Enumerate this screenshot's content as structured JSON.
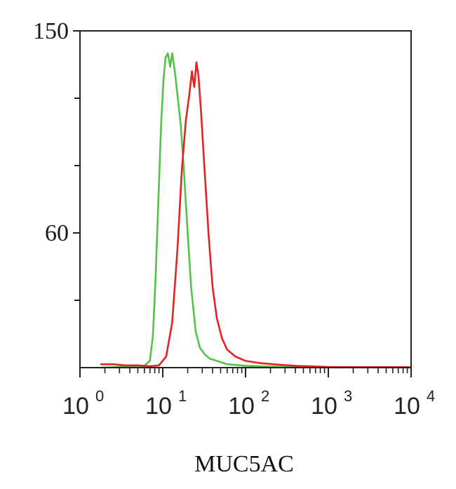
{
  "chart_data": {
    "type": "line",
    "xlabel": "MUC5AC",
    "ylabel": "",
    "xscale": "log",
    "xlim": [
      1,
      10000
    ],
    "ylim": [
      0,
      150
    ],
    "yticks": [
      {
        "value": 150,
        "label": "150"
      },
      {
        "value": 60,
        "label": "60"
      }
    ],
    "xticks": [
      {
        "value": 1,
        "base": "10",
        "exp": "0"
      },
      {
        "value": 10,
        "base": "10",
        "exp": "1"
      },
      {
        "value": 100,
        "base": "10",
        "exp": "2"
      },
      {
        "value": 1000,
        "base": "10",
        "exp": "3"
      },
      {
        "value": 10000,
        "base": "10",
        "exp": "4"
      }
    ],
    "grid": false,
    "legend": "none",
    "series": [
      {
        "color": "#54c24a",
        "points": [
          [
            1.8,
            0
          ],
          [
            4.0,
            0.5
          ],
          [
            6.0,
            0.8
          ],
          [
            7.0,
            3
          ],
          [
            7.6,
            14
          ],
          [
            8.2,
            40
          ],
          [
            9.0,
            82
          ],
          [
            9.6,
            110
          ],
          [
            10.2,
            128
          ],
          [
            10.8,
            138
          ],
          [
            11.5,
            140
          ],
          [
            12.3,
            134
          ],
          [
            13.0,
            140
          ],
          [
            14.0,
            132
          ],
          [
            15.0,
            122
          ],
          [
            16.5,
            108
          ],
          [
            18.0,
            88
          ],
          [
            20.0,
            60
          ],
          [
            22.0,
            36
          ],
          [
            25.0,
            16
          ],
          [
            28.0,
            9
          ],
          [
            32.0,
            6
          ],
          [
            37.0,
            4
          ],
          [
            45.0,
            3
          ],
          [
            60.0,
            1.5
          ],
          [
            100.0,
            0.8
          ],
          [
            300.0,
            0.3
          ],
          [
            5000.0,
            0.2
          ],
          [
            9500.0,
            0.2
          ]
        ]
      },
      {
        "color": "#e52222",
        "points": [
          [
            1.8,
            1.5
          ],
          [
            2.5,
            1.5
          ],
          [
            3.5,
            1.0
          ],
          [
            5.0,
            1.0
          ],
          [
            7.0,
            0.6
          ],
          [
            9.0,
            1
          ],
          [
            11.0,
            5
          ],
          [
            13.0,
            20
          ],
          [
            15.0,
            52
          ],
          [
            17.0,
            88
          ],
          [
            19.0,
            110
          ],
          [
            21.0,
            122
          ],
          [
            22.5,
            132
          ],
          [
            24.0,
            125
          ],
          [
            25.5,
            136
          ],
          [
            27.0,
            130
          ],
          [
            29.0,
            114
          ],
          [
            32.0,
            88
          ],
          [
            36.0,
            58
          ],
          [
            40.0,
            36
          ],
          [
            45.0,
            22
          ],
          [
            52.0,
            13
          ],
          [
            60.0,
            8
          ],
          [
            75.0,
            5
          ],
          [
            100.0,
            3
          ],
          [
            150.0,
            2
          ],
          [
            250.0,
            1.3
          ],
          [
            400.0,
            0.8
          ],
          [
            1000.0,
            0.3
          ],
          [
            9500.0,
            0.2
          ]
        ]
      }
    ]
  }
}
